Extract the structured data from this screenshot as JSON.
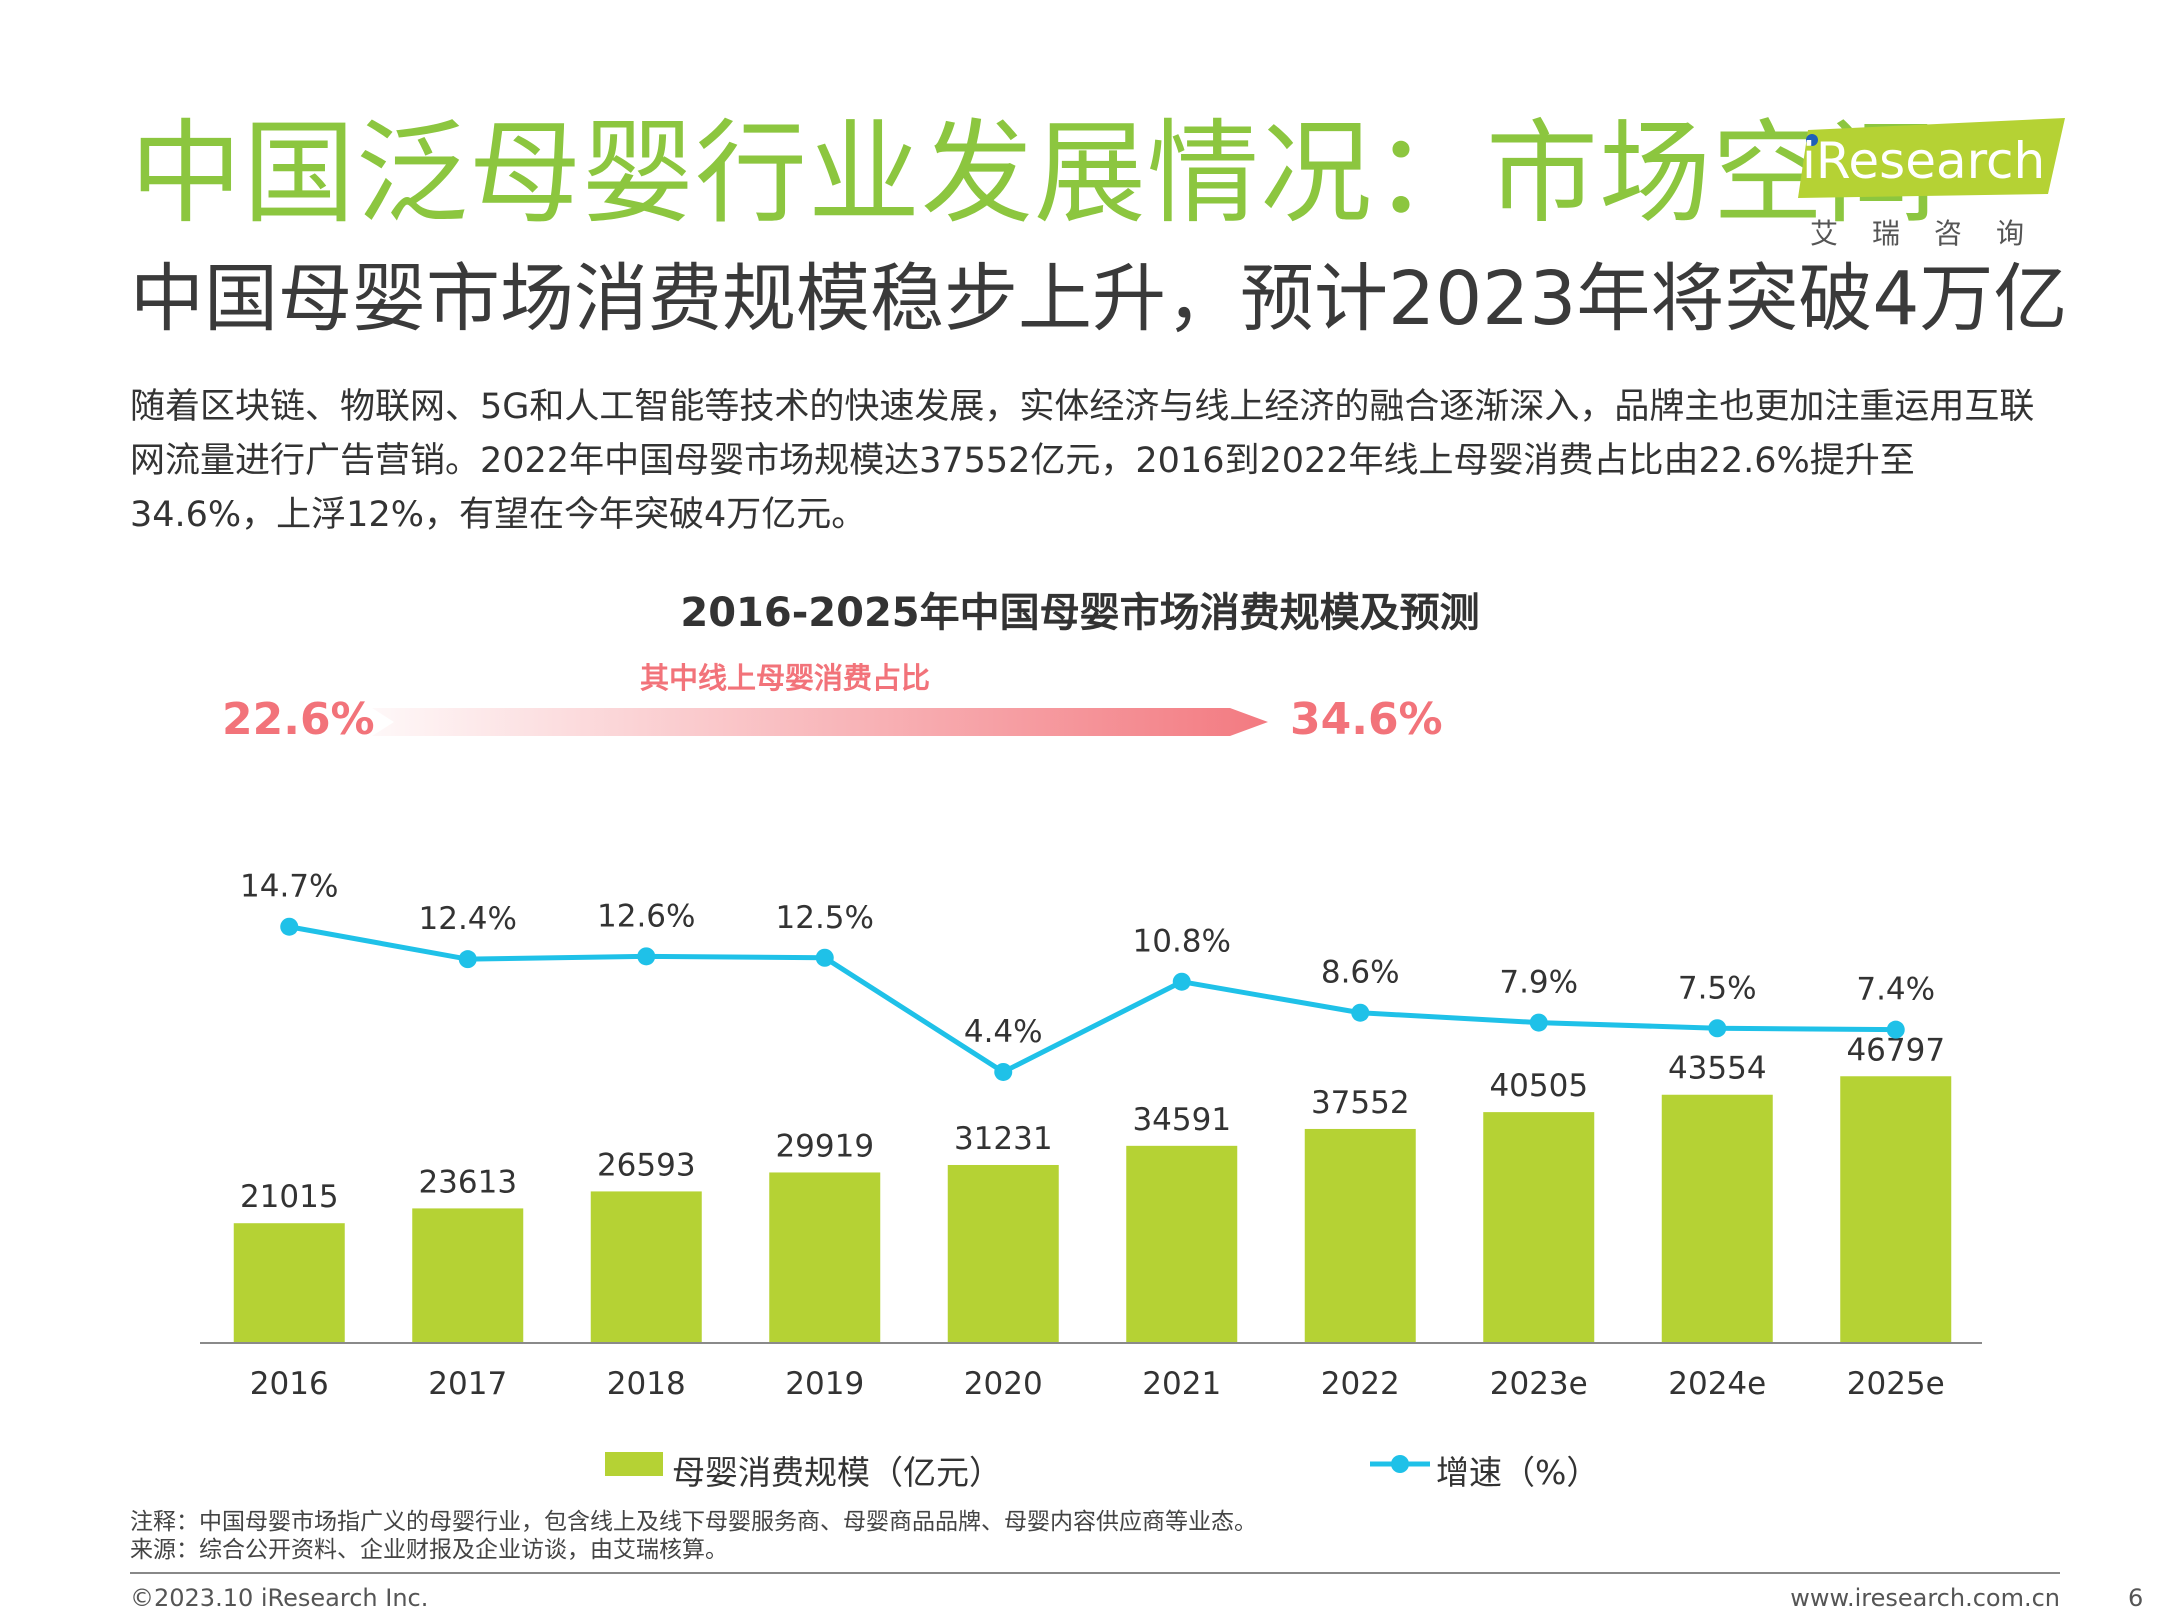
{
  "header": {
    "title": "中国泛母婴行业发展情况：市场空间",
    "subtitle": "中国母婴市场消费规模稳步上升，预计2023年将突破4万亿"
  },
  "logo": {
    "text": "iResearch",
    "cn": "艾瑞咨询",
    "accent_color": "#8CC63F"
  },
  "body": {
    "paragraph": "随着区块链、物联网、5G和人工智能等技术的快速发展，实体经济与线上经济的融合逐渐深入，品牌主也更加注重运用互联网流量进行广告营销。2022年中国母婴市场规模达37552亿元，2016到2022年线上母婴消费占比由22.6%提升至34.6%，上浮12%，有望在今年突破4万亿元。"
  },
  "online_share": {
    "label": "其中线上母婴消费占比",
    "start": "22.6%",
    "end": "34.6%",
    "color": "#F2737A"
  },
  "chart_data": {
    "type": "bar",
    "title": "2016-2025年中国母婴市场消费规模及预测",
    "categories": [
      "2016",
      "2017",
      "2018",
      "2019",
      "2020",
      "2021",
      "2022",
      "2023e",
      "2024e",
      "2025e"
    ],
    "series": [
      {
        "name": "母婴消费规模（亿元）",
        "type": "bar",
        "color": "#B5D234",
        "values": [
          21015,
          23613,
          26593,
          29919,
          31231,
          34591,
          37552,
          40505,
          43554,
          46797
        ]
      },
      {
        "name": "增速（%）",
        "type": "line",
        "color": "#1FC1E8",
        "values": [
          14.7,
          12.4,
          12.6,
          12.5,
          4.4,
          10.8,
          8.6,
          7.9,
          7.5,
          7.4
        ],
        "labels": [
          "14.7%",
          "12.4%",
          "12.6%",
          "12.5%",
          "4.4%",
          "10.8%",
          "8.6%",
          "7.9%",
          "7.5%",
          "7.4%"
        ]
      }
    ],
    "legend_position": "bottom",
    "grid": false
  },
  "footer": {
    "note": "注释：中国母婴市场指广义的母婴行业，包含线上及线下母婴服务商、母婴商品品牌、母婴内容供应商等业态。",
    "source": "来源：综合公开资料、企业财报及企业访谈，由艾瑞核算。",
    "copyright": "©2023.10 iResearch Inc.",
    "website": "www.iresearch.com.cn",
    "page": "6"
  }
}
